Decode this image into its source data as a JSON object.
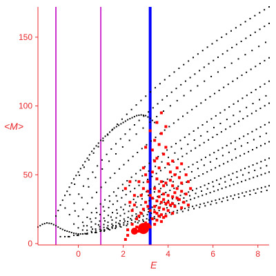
{
  "chart_data": {
    "type": "scatter",
    "xlabel": "E",
    "ylabel": "<M>",
    "xlim": [
      -1.8,
      8.5
    ],
    "ylim": [
      -1,
      172
    ],
    "x_ticks": [
      0,
      2,
      4,
      6,
      8
    ],
    "y_ticks": [
      0,
      50,
      100,
      150
    ],
    "grid": false,
    "colors": {
      "axis": "#e8262a",
      "black_points": "#000000",
      "red_points": "#ff0000",
      "magenta_lines": "#cc33cc",
      "blue_line": "#0000ff"
    },
    "vertical_lines": [
      {
        "x": -1.0,
        "color": "#cc33cc"
      },
      {
        "x": 1.0,
        "color": "#cc33cc"
      },
      {
        "x": 3.2,
        "color": "#0000ff"
      }
    ],
    "series": [
      {
        "marker": "small black dots",
        "color": "#000000",
        "description_rows": [
          {
            "x0": -0.8,
            "y0": 5,
            "x1": 8.5,
            "y1": 172,
            "curve": 0.55
          },
          {
            "x0": -0.6,
            "y0": 5,
            "x1": 8.5,
            "y1": 160,
            "curve": 0.6
          },
          {
            "x0": -0.4,
            "y0": 5,
            "x1": 8.5,
            "y1": 135,
            "curve": 0.7
          },
          {
            "x0": -0.2,
            "y0": 6,
            "x1": 8.5,
            "y1": 118,
            "curve": 0.8
          },
          {
            "x0": 0.0,
            "y0": 6,
            "x1": 8.5,
            "y1": 102,
            "curve": 0.85
          },
          {
            "x0": 0.2,
            "y0": 7,
            "x1": 8.5,
            "y1": 88,
            "curve": 0.9
          },
          {
            "x0": 0.4,
            "y0": 7,
            "x1": 8.5,
            "y1": 74,
            "curve": 0.95
          },
          {
            "x0": 0.6,
            "y0": 8,
            "x1": 8.5,
            "y1": 62,
            "curve": 1.0
          },
          {
            "x0": 0.8,
            "y0": 8,
            "x1": 8.5,
            "y1": 52,
            "curve": 1.0
          },
          {
            "x0": 1.0,
            "y0": 9,
            "x1": 8.5,
            "y1": 42,
            "curve": 1.0
          }
        ],
        "low_curve": [
          [
            -1.8,
            12
          ],
          [
            -1.6,
            14
          ],
          [
            -1.4,
            15
          ],
          [
            -1.2,
            14.5
          ],
          [
            -1.0,
            13
          ],
          [
            -0.8,
            11
          ],
          [
            -0.6,
            9.5
          ],
          [
            -0.4,
            8.5
          ],
          [
            -0.2,
            7.5
          ],
          [
            0.0,
            7
          ],
          [
            0.2,
            7
          ],
          [
            0.4,
            7.5
          ]
        ],
        "upper_branch": [
          [
            -1.0,
            20
          ],
          [
            -0.8,
            28
          ],
          [
            -0.6,
            35
          ],
          [
            -0.4,
            41
          ],
          [
            -0.2,
            47
          ],
          [
            0.0,
            52
          ],
          [
            0.2,
            57
          ],
          [
            0.4,
            62
          ],
          [
            0.6,
            67
          ],
          [
            0.8,
            71
          ],
          [
            1.0,
            75
          ],
          [
            1.2,
            78
          ],
          [
            1.4,
            81
          ],
          [
            1.6,
            84
          ],
          [
            1.8,
            86
          ],
          [
            2.0,
            88
          ],
          [
            2.2,
            90
          ],
          [
            2.4,
            91.5
          ],
          [
            2.6,
            93
          ],
          [
            2.8,
            93.5
          ],
          [
            3.0,
            93
          ],
          [
            3.2,
            91
          ],
          [
            3.4,
            88
          ]
        ]
      },
      {
        "marker": "red squares",
        "color": "#ff0000",
        "points": [
          [
            3.0,
            15
          ],
          [
            2.7,
            9
          ],
          [
            2.5,
            8
          ],
          [
            2.2,
            6
          ],
          [
            2.1,
            3
          ],
          [
            3.5,
            88
          ],
          [
            3.7,
            95
          ],
          [
            3.6,
            72
          ],
          [
            3.9,
            70
          ],
          [
            3.8,
            65
          ],
          [
            3.4,
            60
          ],
          [
            3.6,
            55
          ],
          [
            4.0,
            58
          ],
          [
            4.1,
            52
          ],
          [
            4.3,
            50
          ],
          [
            4.5,
            48
          ],
          [
            3.5,
            47
          ],
          [
            3.7,
            45
          ],
          [
            3.9,
            44
          ],
          [
            4.2,
            42
          ],
          [
            4.4,
            40
          ],
          [
            4.6,
            38
          ],
          [
            3.4,
            40
          ],
          [
            3.6,
            38
          ],
          [
            3.8,
            36
          ],
          [
            4.0,
            35
          ],
          [
            4.2,
            34
          ],
          [
            4.4,
            33
          ],
          [
            3.3,
            33
          ],
          [
            3.5,
            31
          ],
          [
            3.7,
            30
          ],
          [
            3.9,
            29
          ],
          [
            4.1,
            28
          ],
          [
            4.3,
            27
          ],
          [
            3.4,
            27
          ],
          [
            3.6,
            26
          ],
          [
            3.8,
            25
          ],
          [
            4.0,
            24
          ],
          [
            4.2,
            22
          ],
          [
            3.5,
            22
          ],
          [
            3.7,
            21
          ],
          [
            3.9,
            20
          ],
          [
            3.3,
            18
          ],
          [
            3.5,
            17
          ],
          [
            3.7,
            16
          ],
          [
            4.5,
            32
          ],
          [
            4.7,
            30
          ],
          [
            4.8,
            36
          ],
          [
            5.0,
            40
          ],
          [
            4.9,
            45
          ],
          [
            4.6,
            44
          ],
          [
            4.8,
            50
          ],
          [
            3.0,
            30
          ],
          [
            2.9,
            25
          ],
          [
            2.8,
            22
          ],
          [
            2.7,
            20
          ],
          [
            2.6,
            18
          ],
          [
            2.8,
            35
          ],
          [
            2.9,
            40
          ],
          [
            2.7,
            45
          ],
          [
            2.5,
            28
          ],
          [
            2.4,
            24
          ],
          [
            2.3,
            30
          ],
          [
            3.1,
            45
          ],
          [
            3.0,
            50
          ],
          [
            2.9,
            55
          ],
          [
            3.1,
            38
          ],
          [
            3.3,
            52
          ],
          [
            3.5,
            62
          ],
          [
            3.3,
            68
          ],
          [
            3.7,
            80
          ],
          [
            3.9,
            85
          ],
          [
            4.2,
            60
          ],
          [
            4.4,
            55
          ],
          [
            4.6,
            58
          ],
          [
            3.6,
            34
          ],
          [
            3.8,
            32
          ],
          [
            4.0,
            30
          ],
          [
            4.2,
            29
          ],
          [
            3.2,
            24
          ],
          [
            3.4,
            23
          ],
          [
            3.6,
            20
          ],
          [
            3.8,
            19
          ],
          [
            2.6,
            12
          ],
          [
            2.4,
            14
          ],
          [
            2.2,
            10
          ],
          [
            3.2,
            12
          ],
          [
            3.4,
            14
          ],
          [
            3.8,
            42
          ],
          [
            4.1,
            46
          ],
          [
            4.3,
            37
          ],
          [
            4.6,
            26
          ],
          [
            4.9,
            28
          ],
          [
            3.2,
            35
          ],
          [
            3.1,
            27
          ],
          [
            2.5,
            35
          ],
          [
            2.3,
            45
          ],
          [
            2.1,
            40
          ],
          [
            3.0,
            70
          ],
          [
            3.4,
            75
          ],
          [
            3.2,
            82
          ]
        ],
        "big_points": [
          [
            2.9,
            11,
            8
          ],
          [
            2.5,
            9,
            5
          ],
          [
            3.1,
            13,
            4
          ]
        ]
      }
    ]
  }
}
